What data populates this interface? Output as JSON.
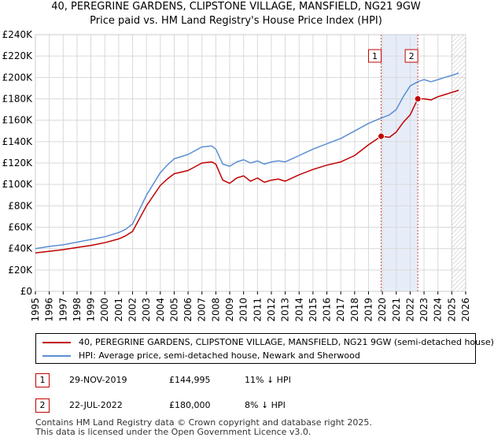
{
  "colors": {
    "price_paid": "#c00000",
    "hpi": "#5b8fd4",
    "shade": "#e6edf9",
    "grid": "#d9d9d9"
  },
  "title": {
    "line1": "40, PEREGRINE GARDENS, CLIPSTONE VILLAGE, MANSFIELD, NG21 9GW",
    "line2": "Price paid vs. HM Land Registry's House Price Index (HPI)"
  },
  "legend": {
    "price_paid_label": "40, PEREGRINE GARDENS, CLIPSTONE VILLAGE, MANSFIELD, NG21 9GW (semi-detached house)",
    "hpi_label": "HPI: Average price, semi-detached house, Newark and Sherwood"
  },
  "sales": [
    {
      "marker": "1",
      "date": "29-NOV-2019",
      "price": "£144,995",
      "hpi_delta": "11% ↓ HPI"
    },
    {
      "marker": "2",
      "date": "22-JUL-2022",
      "price": "£180,000",
      "hpi_delta": "8% ↓ HPI"
    }
  ],
  "footer": {
    "line1": "Contains HM Land Registry data © Crown copyright and database right 2025.",
    "line2": "This data is licensed under the Open Government Licence v3.0."
  },
  "chart_data": {
    "type": "line",
    "title": "40, PEREGRINE GARDENS, CLIPSTONE VILLAGE, MANSFIELD, NG21 9GW — Price paid vs. HM Land Registry's House Price Index (HPI)",
    "xlabel": "",
    "ylabel": "",
    "xlim": [
      1995,
      2026
    ],
    "ylim": [
      0,
      240000
    ],
    "y_ticks": [
      {
        "value": 0,
        "label": "£0"
      },
      {
        "value": 20000,
        "label": "£20K"
      },
      {
        "value": 40000,
        "label": "£40K"
      },
      {
        "value": 60000,
        "label": "£60K"
      },
      {
        "value": 80000,
        "label": "£80K"
      },
      {
        "value": 100000,
        "label": "£100K"
      },
      {
        "value": 120000,
        "label": "£120K"
      },
      {
        "value": 140000,
        "label": "£140K"
      },
      {
        "value": 160000,
        "label": "£160K"
      },
      {
        "value": 180000,
        "label": "£180K"
      },
      {
        "value": 200000,
        "label": "£200K"
      },
      {
        "value": 220000,
        "label": "£220K"
      },
      {
        "value": 240000,
        "label": "£240K"
      }
    ],
    "x_ticks": [
      "1995",
      "1996",
      "1997",
      "1998",
      "1999",
      "2000",
      "2001",
      "2002",
      "2003",
      "2004",
      "2005",
      "2006",
      "2007",
      "2008",
      "2009",
      "2010",
      "2011",
      "2012",
      "2013",
      "2014",
      "2015",
      "2016",
      "2017",
      "2018",
      "2019",
      "2020",
      "2021",
      "2022",
      "2023",
      "2024",
      "2025",
      "2026"
    ],
    "grid": true,
    "shaded_period": {
      "from": 2019.91,
      "to": 2022.55
    },
    "future_hatch_from": 2025.0,
    "series": [
      {
        "name": "40, PEREGRINE GARDENS, CLIPSTONE VILLAGE, MANSFIELD, NG21 9GW (semi-detached house)",
        "key": "price_paid",
        "x": [
          1995,
          1996,
          1997,
          1998,
          1999,
          2000,
          2001,
          2001.5,
          2002,
          2003,
          2004,
          2004.5,
          2005,
          2006,
          2007,
          2007.7,
          2008,
          2008.5,
          2009,
          2009.5,
          2010,
          2010.5,
          2011,
          2011.5,
          2012,
          2012.5,
          2013,
          2014,
          2015,
          2016,
          2017,
          2018,
          2019,
          2019.91,
          2020.5,
          2021,
          2021.5,
          2022,
          2022.55,
          2023,
          2023.5,
          2024,
          2024.5,
          2025,
          2025.5
        ],
        "y": [
          36000,
          37500,
          39000,
          41000,
          43000,
          45500,
          49000,
          52000,
          56000,
          80000,
          99000,
          105000,
          110000,
          113000,
          120000,
          121000,
          119000,
          104000,
          101000,
          106000,
          108000,
          103000,
          106000,
          102000,
          104000,
          105000,
          103000,
          109000,
          114000,
          118000,
          121000,
          127000,
          137000,
          144995,
          144000,
          149000,
          158000,
          165000,
          180000,
          180000,
          179000,
          182000,
          184000,
          186000,
          188000
        ]
      },
      {
        "name": "HPI: Average price, semi-detached house, Newark and Sherwood",
        "key": "hpi",
        "x": [
          1995,
          1996,
          1997,
          1998,
          1999,
          2000,
          2001,
          2001.5,
          2002,
          2003,
          2004,
          2004.5,
          2005,
          2006,
          2007,
          2007.7,
          2008,
          2008.5,
          2009,
          2009.5,
          2010,
          2010.5,
          2011,
          2011.5,
          2012,
          2012.5,
          2013,
          2014,
          2015,
          2016,
          2017,
          2018,
          2019,
          2019.91,
          2020.5,
          2021,
          2021.5,
          2022,
          2022.55,
          2023,
          2023.5,
          2024,
          2024.5,
          2025,
          2025.5
        ],
        "y": [
          40000,
          42000,
          43500,
          46000,
          48500,
          51000,
          55000,
          58000,
          63000,
          90000,
          111000,
          118000,
          124000,
          128000,
          135000,
          136000,
          133000,
          119000,
          117000,
          121000,
          123000,
          120000,
          122000,
          119000,
          121000,
          122000,
          121000,
          127000,
          133000,
          138000,
          143000,
          150000,
          157000,
          162000,
          165000,
          170000,
          182000,
          192000,
          196000,
          198000,
          196000,
          198000,
          200000,
          202000,
          204000
        ]
      }
    ],
    "markers": [
      {
        "label": "1",
        "x": 2019.91,
        "y": 144995
      },
      {
        "label": "2",
        "x": 2022.55,
        "y": 180000
      }
    ]
  }
}
